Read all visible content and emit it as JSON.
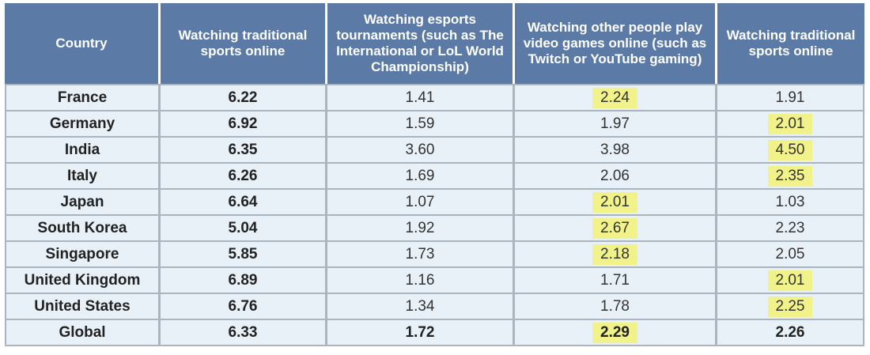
{
  "chart_data": {
    "type": "table",
    "columns": [
      "Country",
      "Watching traditional sports online",
      "Watching esports tournaments (such as The International or LoL World Championship)",
      "Watching other people play video games online (such as Twitch or YouTube gaming)",
      "Watching traditional sports online"
    ],
    "rows": [
      {
        "country": "France",
        "values": [
          "6.22",
          "1.41",
          "2.24",
          "1.91"
        ],
        "highlight": [
          false,
          false,
          true,
          false
        ]
      },
      {
        "country": "Germany",
        "values": [
          "6.92",
          "1.59",
          "1.97",
          "2.01"
        ],
        "highlight": [
          false,
          false,
          false,
          true
        ]
      },
      {
        "country": "India",
        "values": [
          "6.35",
          "3.60",
          "3.98",
          "4.50"
        ],
        "highlight": [
          false,
          false,
          false,
          true
        ]
      },
      {
        "country": "Italy",
        "values": [
          "6.26",
          "1.69",
          "2.06",
          "2.35"
        ],
        "highlight": [
          false,
          false,
          false,
          true
        ]
      },
      {
        "country": "Japan",
        "values": [
          "6.64",
          "1.07",
          "2.01",
          "1.03"
        ],
        "highlight": [
          false,
          false,
          true,
          false
        ]
      },
      {
        "country": "South Korea",
        "values": [
          "5.04",
          "1.92",
          "2.67",
          "2.23"
        ],
        "highlight": [
          false,
          false,
          true,
          false
        ]
      },
      {
        "country": "Singapore",
        "values": [
          "5.85",
          "1.73",
          "2.18",
          "2.05"
        ],
        "highlight": [
          false,
          false,
          true,
          false
        ]
      },
      {
        "country": "United Kingdom",
        "values": [
          "6.89",
          "1.16",
          "1.71",
          "2.01"
        ],
        "highlight": [
          false,
          false,
          false,
          true
        ]
      },
      {
        "country": "United States",
        "values": [
          "6.76",
          "1.34",
          "1.78",
          "2.25"
        ],
        "highlight": [
          false,
          false,
          false,
          true
        ]
      },
      {
        "country": "Global",
        "values": [
          "6.33",
          "1.72",
          "2.29",
          "2.26"
        ],
        "highlight": [
          false,
          false,
          true,
          false
        ]
      }
    ]
  },
  "colors": {
    "header_bg": "#5b7aa6",
    "cell_bg": "#e9f1f8",
    "highlight": "#f1f38a",
    "border": "#aab5c0"
  }
}
